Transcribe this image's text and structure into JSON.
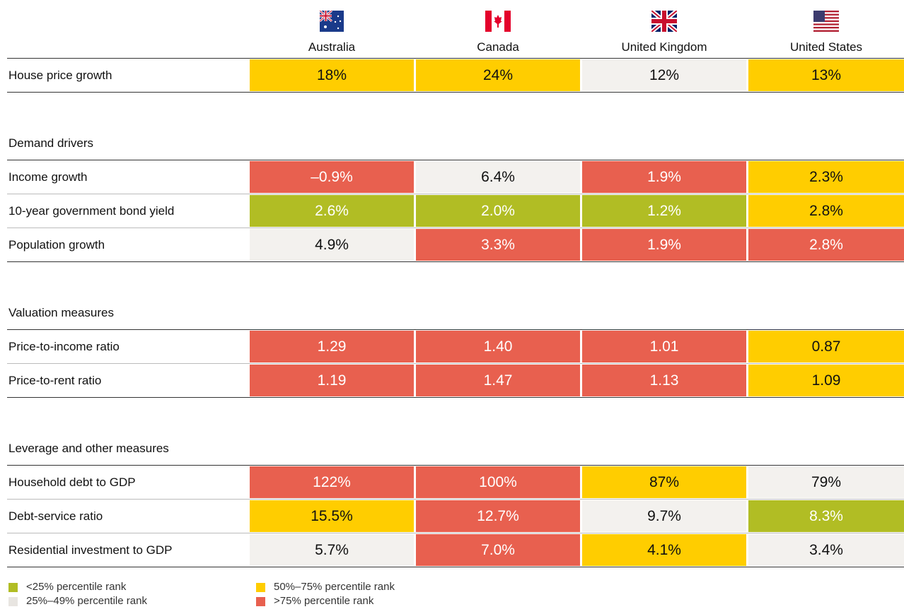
{
  "table": {
    "columns": [
      "Australia",
      "Canada",
      "United Kingdom",
      "United States"
    ],
    "headline": {
      "rows": [
        {
          "label": "House price growth",
          "cells": [
            {
              "value": "18%",
              "color": "#ffcd00"
            },
            {
              "value": "24%",
              "color": "#ffcd00"
            },
            {
              "value": "12%",
              "color": "#f3f1ee"
            },
            {
              "value": "13%",
              "color": "#ffcd00"
            }
          ]
        }
      ]
    },
    "sections": [
      {
        "title": "Demand drivers",
        "rows": [
          {
            "label": "Income growth",
            "cells": [
              {
                "value": "–0.9%",
                "color": "#e8604f"
              },
              {
                "value": "6.4%",
                "color": "#f3f1ee"
              },
              {
                "value": "1.9%",
                "color": "#e8604f"
              },
              {
                "value": "2.3%",
                "color": "#ffcd00"
              }
            ]
          },
          {
            "label": "10-year government bond yield",
            "cells": [
              {
                "value": "2.6%",
                "color": "#b1bd24"
              },
              {
                "value": "2.0%",
                "color": "#b1bd24"
              },
              {
                "value": "1.2%",
                "color": "#b1bd24"
              },
              {
                "value": "2.8%",
                "color": "#ffcd00"
              }
            ]
          },
          {
            "label": "Population growth",
            "cells": [
              {
                "value": "4.9%",
                "color": "#f3f1ee"
              },
              {
                "value": "3.3%",
                "color": "#e8604f"
              },
              {
                "value": "1.9%",
                "color": "#e8604f"
              },
              {
                "value": "2.8%",
                "color": "#e8604f"
              }
            ]
          }
        ]
      },
      {
        "title": "Valuation measures",
        "rows": [
          {
            "label": "Price-to-income ratio",
            "cells": [
              {
                "value": "1.29",
                "color": "#e8604f"
              },
              {
                "value": "1.40",
                "color": "#e8604f"
              },
              {
                "value": "1.01",
                "color": "#e8604f"
              },
              {
                "value": "0.87",
                "color": "#ffcd00"
              }
            ]
          },
          {
            "label": "Price-to-rent ratio",
            "cells": [
              {
                "value": "1.19",
                "color": "#e8604f"
              },
              {
                "value": "1.47",
                "color": "#e8604f"
              },
              {
                "value": "1.13",
                "color": "#e8604f"
              },
              {
                "value": "1.09",
                "color": "#ffcd00"
              }
            ]
          }
        ]
      },
      {
        "title": "Leverage and other measures",
        "rows": [
          {
            "label": "Household debt to GDP",
            "cells": [
              {
                "value": "122%",
                "color": "#e8604f"
              },
              {
                "value": "100%",
                "color": "#e8604f"
              },
              {
                "value": "87%",
                "color": "#ffcd00"
              },
              {
                "value": "79%",
                "color": "#f3f1ee"
              }
            ]
          },
          {
            "label": "Debt-service ratio",
            "cells": [
              {
                "value": "15.5%",
                "color": "#ffcd00"
              },
              {
                "value": "12.7%",
                "color": "#e8604f"
              },
              {
                "value": "9.7%",
                "color": "#f3f1ee"
              },
              {
                "value": "8.3%",
                "color": "#b1bd24"
              }
            ]
          },
          {
            "label": "Residential investment to GDP",
            "cells": [
              {
                "value": "5.7%",
                "color": "#f3f1ee"
              },
              {
                "value": "7.0%",
                "color": "#e8604f"
              },
              {
                "value": "4.1%",
                "color": "#ffcd00"
              },
              {
                "value": "3.4%",
                "color": "#f3f1ee"
              }
            ]
          }
        ]
      }
    ]
  },
  "legend": [
    {
      "label": "<25% percentile rank",
      "color": "#b1bd24"
    },
    {
      "label": "25%–49% percentile rank",
      "color": "#e8e5e1"
    },
    {
      "label": "50%–75% percentile rank",
      "color": "#ffcd00"
    },
    {
      "label": ">75% percentile rank",
      "color": "#e8604f"
    }
  ]
}
